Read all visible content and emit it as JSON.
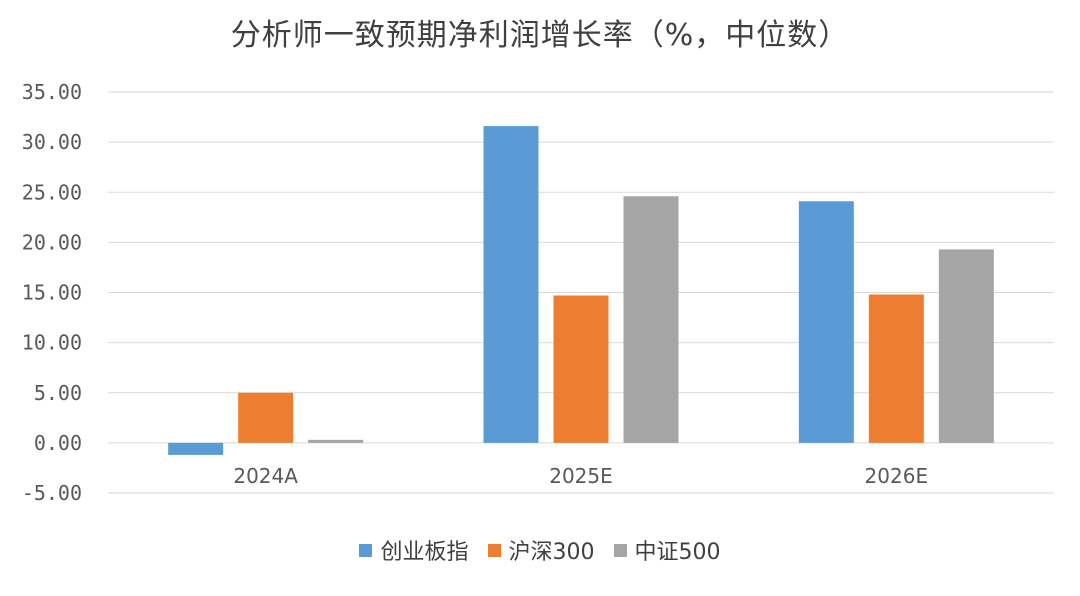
{
  "chart_data": {
    "type": "bar",
    "title": "分析师一致预期净利润增长率（%，中位数）",
    "categories": [
      "2024A",
      "2025E",
      "2026E"
    ],
    "series": [
      {
        "name": "创业板指",
        "color": "#5B9BD5",
        "values": [
          -1.2,
          31.6,
          24.1
        ]
      },
      {
        "name": "沪深300",
        "color": "#ED7D31",
        "values": [
          5.0,
          14.7,
          14.8
        ]
      },
      {
        "name": "中证500",
        "color": "#A5A5A5",
        "values": [
          0.3,
          24.6,
          19.3
        ]
      }
    ],
    "ylim": [
      -5,
      35
    ],
    "yticks": [
      "35.00",
      "30.00",
      "25.00",
      "20.00",
      "15.00",
      "10.00",
      "5.00",
      "0.00",
      "-5.00"
    ],
    "grid": true,
    "legend_position": "bottom"
  }
}
